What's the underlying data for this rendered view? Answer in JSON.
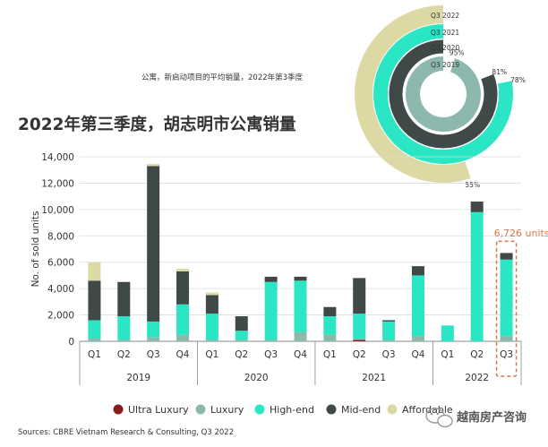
{
  "chart_data": [
    {
      "type": "bar",
      "stacked": true,
      "title": "2022年第三季度，胡志明市公寓销量",
      "ylabel": "No. of sold units",
      "xlabel": "",
      "ylim": [
        0,
        14000
      ],
      "yticks": [
        0,
        2000,
        4000,
        6000,
        8000,
        10000,
        12000,
        14000
      ],
      "ytick_labels": [
        "0",
        "2,000",
        "4,000",
        "6,000",
        "8,000",
        "10,000",
        "12,000",
        "14,000"
      ],
      "grid": true,
      "legend_position": "bottom",
      "groups": [
        {
          "label": "2019",
          "quarters": [
            "Q1",
            "Q2",
            "Q3",
            "Q4"
          ]
        },
        {
          "label": "2020",
          "quarters": [
            "Q1",
            "Q2",
            "Q3",
            "Q4"
          ]
        },
        {
          "label": "2021",
          "quarters": [
            "Q1",
            "Q2",
            "Q3",
            "Q4"
          ]
        },
        {
          "label": "2022",
          "quarters": [
            "Q1",
            "Q2",
            "Q3"
          ]
        }
      ],
      "series": [
        {
          "name": "Ultra Luxury",
          "color": "#8b1c1c",
          "values": [
            0,
            0,
            0,
            0,
            0,
            0,
            0,
            0,
            0,
            100,
            0,
            0,
            0,
            0,
            0
          ]
        },
        {
          "name": "Luxury",
          "color": "#8cb8ae",
          "values": [
            200,
            100,
            300,
            500,
            100,
            100,
            100,
            700,
            500,
            100,
            100,
            400,
            0,
            0,
            400
          ]
        },
        {
          "name": "High-end",
          "color": "#2ae6c4",
          "values": [
            1400,
            1800,
            1200,
            2300,
            2000,
            700,
            4400,
            3900,
            1400,
            1900,
            1400,
            4600,
            1200,
            9800,
            5800
          ]
        },
        {
          "name": "Mid-end",
          "color": "#3f4a48",
          "values": [
            3000,
            2600,
            11800,
            2500,
            1400,
            1100,
            400,
            300,
            700,
            2700,
            100,
            700,
            0,
            800,
            500
          ]
        },
        {
          "name": "Affordable",
          "color": "#ddd9a5",
          "values": [
            1400,
            0,
            150,
            200,
            200,
            0,
            0,
            0,
            0,
            0,
            0,
            0,
            0,
            0,
            0
          ]
        }
      ],
      "highlight": {
        "index": 14,
        "label": "6,726 units",
        "color": "#d9774a"
      }
    },
    {
      "type": "radial-bar",
      "title": "公寓，新启动项目的平均销量，2022年第3季度",
      "categories": [
        "Q3 2022",
        "Q3 2021",
        "Q3 2020",
        "Q3 2019"
      ],
      "values": [
        55,
        78,
        81,
        95
      ],
      "value_labels": [
        "55%",
        "78%",
        "81%",
        "95%"
      ],
      "colors": [
        "#ddd9a5",
        "#2ae6c4",
        "#3f4a48",
        "#8cb8ae"
      ]
    }
  ],
  "source": "Sources: CBRE Vietnam Research & Consulting, Q3 2022",
  "watermark": "越南房产咨询"
}
